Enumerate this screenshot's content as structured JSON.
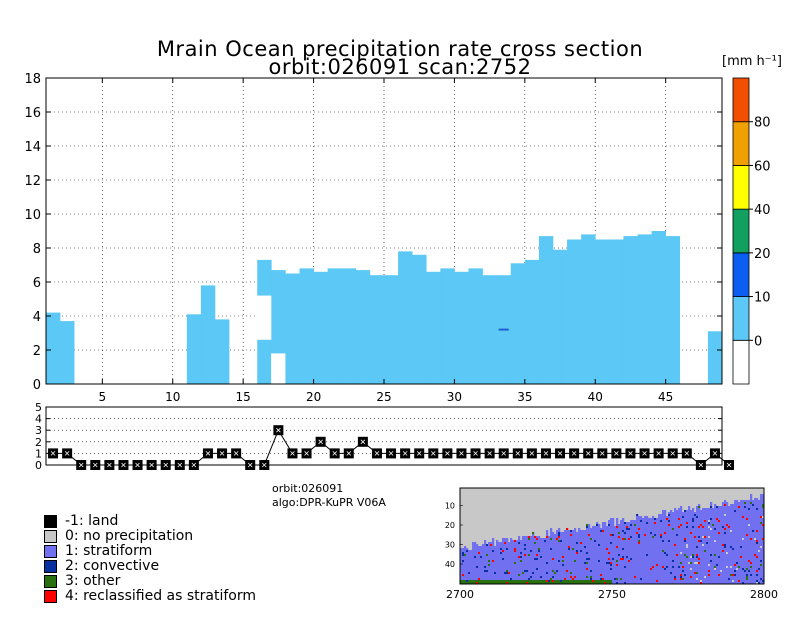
{
  "title_line1": "Mrain Ocean precipitation rate cross section",
  "title_line2": "orbit:026091    scan:2752",
  "colorbar": {
    "unit_label": "[mm h⁻¹]",
    "ticks": [
      "0",
      "10",
      "20",
      "40",
      "60",
      "80"
    ],
    "colors": [
      "#ffffff",
      "#5bc8f5",
      "#0a5ff0",
      "#12a060",
      "#ffff00",
      "#f0a000",
      "#f05000"
    ]
  },
  "info": {
    "orbit": "orbit:026091",
    "algo": "algo:DPR-KuPR V06A"
  },
  "legend": [
    {
      "label": "-1: land",
      "color": "#000000"
    },
    {
      "label": "0: no precipitation",
      "color": "#c8c8c8"
    },
    {
      "label": "1: stratiform",
      "color": "#7070f0"
    },
    {
      "label": "2: convective",
      "color": "#0830a0"
    },
    {
      "label": "3: other",
      "color": "#287010"
    },
    {
      "label": "4: reclassified as stratiform",
      "color": "#ff0000"
    }
  ],
  "map": {
    "y_ticks": [
      "10",
      "20",
      "30",
      "40"
    ],
    "x_ticks": [
      "2700",
      "2750",
      "2800"
    ]
  },
  "chart_data": [
    {
      "type": "heatmap",
      "title": "Mrain Ocean precipitation rate cross section",
      "subtitle": "orbit:026091    scan:2752",
      "xlim": [
        1,
        49
      ],
      "ylim": [
        0,
        18
      ],
      "x_ticks": [
        5,
        10,
        15,
        20,
        25,
        30,
        35,
        40,
        45
      ],
      "y_ticks": [
        0,
        2,
        4,
        6,
        8,
        10,
        12,
        14,
        16,
        18
      ],
      "grid": true,
      "color": "#5bc8f5",
      "columns": [
        {
          "bin": 1,
          "top": 4.2
        },
        {
          "bin": 2,
          "top": 3.7
        },
        {
          "bin": 11,
          "top": 4.1
        },
        {
          "bin": 12,
          "top": 5.8
        },
        {
          "bin": 13,
          "top": 3.8
        },
        {
          "bin": 16,
          "top": 7.3,
          "gaps": [
            [
              2.6,
              5.2
            ]
          ]
        },
        {
          "bin": 17,
          "top": 6.7,
          "gaps": [
            [
              0,
              1.8
            ]
          ]
        },
        {
          "bin": 18,
          "top": 6.5
        },
        {
          "bin": 19,
          "top": 6.8
        },
        {
          "bin": 20,
          "top": 6.6
        },
        {
          "bin": 21,
          "top": 6.8
        },
        {
          "bin": 22,
          "top": 6.8
        },
        {
          "bin": 23,
          "top": 6.7
        },
        {
          "bin": 24,
          "top": 6.4
        },
        {
          "bin": 25,
          "top": 6.4
        },
        {
          "bin": 26,
          "top": 7.8
        },
        {
          "bin": 27,
          "top": 7.6
        },
        {
          "bin": 28,
          "top": 6.6
        },
        {
          "bin": 29,
          "top": 6.8
        },
        {
          "bin": 30,
          "top": 6.6
        },
        {
          "bin": 31,
          "top": 6.8
        },
        {
          "bin": 32,
          "top": 6.4
        },
        {
          "bin": 33,
          "top": 6.4
        },
        {
          "bin": 34,
          "top": 7.1
        },
        {
          "bin": 35,
          "top": 7.3
        },
        {
          "bin": 36,
          "top": 8.7
        },
        {
          "bin": 37,
          "top": 7.9
        },
        {
          "bin": 38,
          "top": 8.5
        },
        {
          "bin": 39,
          "top": 8.8
        },
        {
          "bin": 40,
          "top": 8.5
        },
        {
          "bin": 41,
          "top": 8.5
        },
        {
          "bin": 42,
          "top": 8.7
        },
        {
          "bin": 43,
          "top": 8.8
        },
        {
          "bin": 44,
          "top": 9.0
        },
        {
          "bin": 45,
          "top": 8.7
        },
        {
          "bin": 48,
          "top": 3.1
        }
      ],
      "convective_mark": {
        "x": 33,
        "y": 3.2,
        "color": "#1f5fd8"
      }
    },
    {
      "type": "line",
      "ylim": [
        0,
        5
      ],
      "y_ticks": [
        0,
        1,
        2,
        3,
        4,
        5
      ],
      "x": [
        1,
        2,
        3,
        4,
        5,
        6,
        7,
        8,
        9,
        10,
        11,
        12,
        13,
        14,
        15,
        16,
        17,
        18,
        19,
        20,
        21,
        22,
        23,
        24,
        25,
        26,
        27,
        28,
        29,
        30,
        31,
        32,
        33,
        34,
        35,
        36,
        37,
        38,
        39,
        40,
        41,
        42,
        43,
        44,
        45,
        46,
        47,
        48,
        49
      ],
      "values": [
        1,
        1,
        0,
        0,
        0,
        0,
        0,
        0,
        0,
        0,
        0,
        1,
        1,
        1,
        0,
        0,
        3,
        1,
        1,
        2,
        1,
        1,
        2,
        1,
        1,
        1,
        1,
        1,
        1,
        1,
        1,
        1,
        1,
        1,
        1,
        1,
        1,
        1,
        1,
        1,
        1,
        1,
        1,
        1,
        1,
        1,
        0,
        1,
        0
      ]
    }
  ]
}
